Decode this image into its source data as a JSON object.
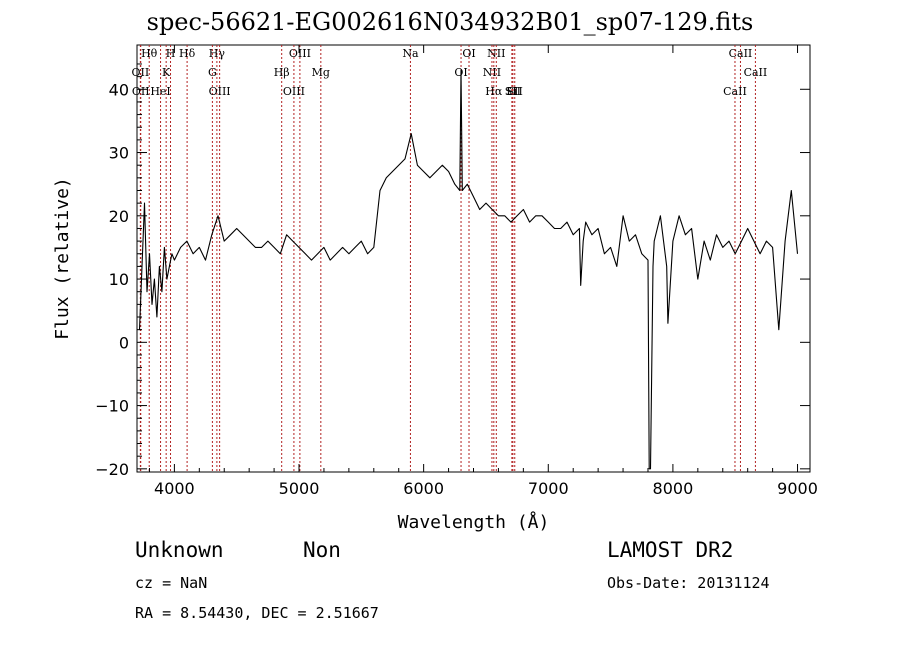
{
  "chart_data": {
    "type": "line",
    "title": "spec-56621-EG002616N034932B01_sp07-129.fits",
    "xlabel": "Wavelength (Å)",
    "ylabel": "Flux (relative)",
    "xlim": [
      3700,
      9100
    ],
    "ylim": [
      -20.5,
      47
    ],
    "xticks": [
      4000,
      5000,
      6000,
      7000,
      8000,
      9000
    ],
    "yticks": [
      -20,
      -10,
      0,
      10,
      20,
      30,
      40
    ],
    "grid": false,
    "legend": "none",
    "line_color": "#000000",
    "marker_color": "#b22222",
    "series": [
      {
        "x": [
          3720,
          3740,
          3760,
          3780,
          3800,
          3820,
          3840,
          3860,
          3880,
          3900,
          3920,
          3940,
          3960,
          3980,
          4000,
          4050,
          4100,
          4150,
          4200,
          4250,
          4300,
          4350,
          4400,
          4450,
          4500,
          4550,
          4600,
          4650,
          4700,
          4750,
          4800,
          4850,
          4900,
          4950,
          5000,
          5050,
          5100,
          5150,
          5200,
          5250,
          5300,
          5350,
          5400,
          5450,
          5500,
          5550,
          5600,
          5650,
          5700,
          5750,
          5800,
          5850,
          5900,
          5950,
          6000,
          6050,
          6100,
          6150,
          6200,
          6250,
          6290,
          6300,
          6310,
          6350,
          6400,
          6450,
          6500,
          6550,
          6600,
          6650,
          6700,
          6750,
          6800,
          6850,
          6900,
          6950,
          7000,
          7050,
          7100,
          7150,
          7200,
          7250,
          7260,
          7280,
          7300,
          7350,
          7400,
          7450,
          7500,
          7550,
          7600,
          7650,
          7700,
          7750,
          7800,
          7810,
          7820,
          7840,
          7850,
          7900,
          7950,
          7960,
          8000,
          8050,
          8100,
          8150,
          8200,
          8250,
          8300,
          8350,
          8400,
          8450,
          8500,
          8550,
          8600,
          8650,
          8700,
          8750,
          8800,
          8850,
          8900,
          8950,
          9000
        ],
        "y": [
          2,
          12,
          22,
          8,
          14,
          6,
          10,
          4,
          12,
          8,
          15,
          10,
          12,
          14,
          13,
          15,
          16,
          14,
          15,
          13,
          17,
          20,
          16,
          17,
          18,
          17,
          16,
          15,
          15,
          16,
          15,
          14,
          17,
          16,
          15,
          14,
          13,
          14,
          15,
          13,
          14,
          15,
          14,
          15,
          16,
          14,
          15,
          24,
          26,
          27,
          28,
          29,
          33,
          28,
          27,
          26,
          27,
          28,
          27,
          25,
          24,
          43,
          24,
          25,
          23,
          21,
          22,
          21,
          20,
          20,
          19,
          20,
          21,
          19,
          20,
          20,
          19,
          18,
          18,
          19,
          17,
          18,
          9,
          16,
          19,
          17,
          18,
          14,
          15,
          12,
          20,
          16,
          17,
          14,
          13,
          -20,
          -20,
          12,
          16,
          20,
          12,
          3,
          16,
          20,
          17,
          18,
          10,
          16,
          13,
          17,
          15,
          16,
          14,
          16,
          18,
          16,
          14,
          16,
          15,
          2,
          16,
          24,
          14
        ]
      }
    ],
    "annotations": [
      {
        "text": "Hθ",
        "x": 3798
      },
      {
        "text": "OII",
        "x": 3727
      },
      {
        "text": "OII",
        "x": 3730
      },
      {
        "text": "H",
        "x": 3969
      },
      {
        "text": "K",
        "x": 3934
      },
      {
        "text": "HeI",
        "x": 3889
      },
      {
        "text": "Hδ",
        "x": 4102
      },
      {
        "text": "Hγ",
        "x": 4341
      },
      {
        "text": "G",
        "x": 4305
      },
      {
        "text": "OIII",
        "x": 4363
      },
      {
        "text": "OIII",
        "x": 5007
      },
      {
        "text": "Hβ",
        "x": 4861
      },
      {
        "text": "OIII",
        "x": 4959
      },
      {
        "text": "Mg",
        "x": 5175
      },
      {
        "text": "Na",
        "x": 5894
      },
      {
        "text": "OI",
        "x": 6364
      },
      {
        "text": "OI",
        "x": 6300
      },
      {
        "text": "NII",
        "x": 6583
      },
      {
        "text": "NII",
        "x": 6548
      },
      {
        "text": "Hα",
        "x": 6563
      },
      {
        "text": "Li",
        "x": 6708
      },
      {
        "text": "SII",
        "x": 6731
      },
      {
        "text": "SII",
        "x": 6716
      },
      {
        "text": "CaII",
        "x": 8542
      },
      {
        "text": "CaII",
        "x": 8662
      },
      {
        "text": "CaII",
        "x": 8498
      }
    ]
  },
  "info": {
    "obj_class": "Unknown",
    "obj_subclass": "Non",
    "survey": "LAMOST DR2",
    "cz": "cz = NaN",
    "obs_date": "Obs-Date: 20131124",
    "radec": "RA =   8.54430, DEC =   2.51667"
  }
}
